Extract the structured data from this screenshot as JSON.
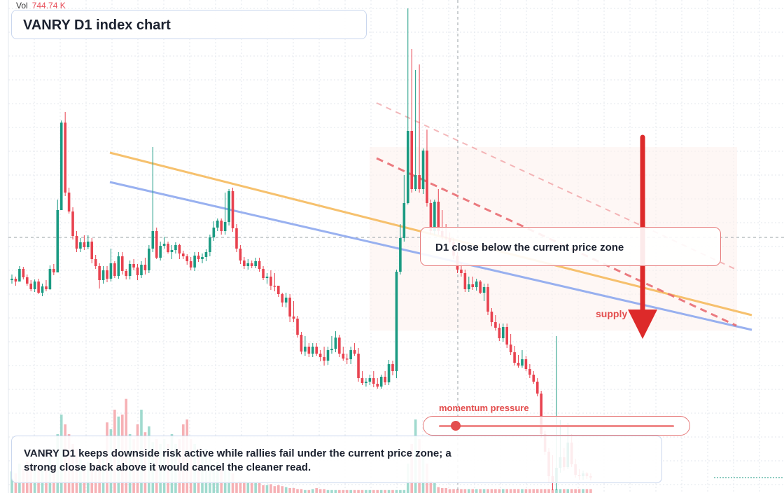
{
  "header": {
    "vol_label": "Vol",
    "vol_value": "744.74 K",
    "title": "VANRY D1 index chart"
  },
  "annotations": {
    "callout": "D1 close below the current price zone",
    "supply": "supply",
    "momentum_label": "momentum pressure",
    "momentum_value": 0.07,
    "summary": "VANRY D1 keeps downside risk active while rallies fail under the current price zone; a strong close back above it would cancel the cleaner read."
  },
  "colors": {
    "up": "#1a9a82",
    "down": "#e8424f",
    "vol_up": "#8fd3c6",
    "vol_down": "#f4a3a8",
    "trend_orange": "#f6bb5f",
    "trend_blue": "#8ea9ef",
    "resistance": "#e8656b",
    "accent": "#e34d4d"
  },
  "icons": {
    "signal_arrow": "down-arrow-icon"
  },
  "chart_data": {
    "type": "candlestick",
    "title": "VANRY D1 index chart",
    "grid": true,
    "ylim": [
      0,
      704
    ],
    "candles": [
      [
        400,
        398,
        405,
        392
      ],
      [
        398,
        402,
        408,
        395
      ],
      [
        402,
        384,
        388,
        380
      ],
      [
        384,
        396,
        399,
        381
      ],
      [
        396,
        405,
        408,
        392
      ],
      [
        405,
        413,
        416,
        400
      ],
      [
        413,
        402,
        417,
        399
      ],
      [
        402,
        418,
        420,
        398
      ],
      [
        418,
        409,
        423,
        405
      ],
      [
        409,
        413,
        416,
        400
      ],
      [
        413,
        384,
        414,
        379
      ],
      [
        384,
        389,
        393,
        377
      ],
      [
        389,
        300,
        308,
        285
      ],
      [
        300,
        175,
        185,
        172
      ],
      [
        175,
        275,
        280,
        160
      ],
      [
        275,
        302,
        305,
        268
      ],
      [
        302,
        337,
        342,
        296
      ],
      [
        337,
        355,
        360,
        330
      ],
      [
        355,
        346,
        360,
        340
      ],
      [
        346,
        353,
        357,
        336
      ],
      [
        353,
        345,
        356,
        336
      ],
      [
        345,
        370,
        376,
        340
      ],
      [
        370,
        380,
        384,
        364
      ],
      [
        380,
        400,
        412,
        376
      ],
      [
        400,
        386,
        405,
        380
      ],
      [
        386,
        398,
        403,
        380
      ],
      [
        398,
        376,
        402,
        355
      ],
      [
        376,
        394,
        397,
        373
      ],
      [
        394,
        366,
        398,
        360
      ],
      [
        366,
        387,
        392,
        360
      ],
      [
        387,
        394,
        399,
        384
      ],
      [
        394,
        377,
        399,
        372
      ],
      [
        377,
        382,
        386,
        370
      ],
      [
        382,
        393,
        400,
        377
      ],
      [
        393,
        378,
        397,
        373
      ],
      [
        378,
        386,
        392,
        368
      ],
      [
        386,
        355,
        390,
        350
      ],
      [
        355,
        330,
        360,
        210
      ],
      [
        330,
        368,
        370,
        325
      ],
      [
        368,
        351,
        372,
        345
      ],
      [
        351,
        348,
        355,
        338
      ],
      [
        348,
        360,
        362,
        345
      ],
      [
        360,
        357,
        370,
        350
      ],
      [
        357,
        350,
        362,
        346
      ],
      [
        350,
        362,
        370,
        348
      ],
      [
        362,
        366,
        370,
        358
      ],
      [
        366,
        373,
        378,
        363
      ],
      [
        373,
        382,
        386,
        367
      ],
      [
        382,
        365,
        387,
        360
      ],
      [
        365,
        370,
        374,
        360
      ],
      [
        370,
        367,
        376,
        362
      ],
      [
        367,
        360,
        373,
        356
      ],
      [
        360,
        339,
        366,
        335
      ],
      [
        339,
        325,
        344,
        316
      ],
      [
        325,
        315,
        330,
        312
      ],
      [
        315,
        330,
        335,
        312
      ],
      [
        330,
        317,
        335,
        275
      ],
      [
        317,
        273,
        322,
        270
      ],
      [
        273,
        326,
        331,
        268
      ],
      [
        326,
        355,
        360,
        320
      ],
      [
        355,
        372,
        377,
        350
      ],
      [
        372,
        380,
        384,
        367
      ],
      [
        380,
        376,
        385,
        370
      ],
      [
        376,
        380,
        383,
        372
      ],
      [
        380,
        373,
        383,
        368
      ],
      [
        373,
        384,
        388,
        368
      ],
      [
        384,
        397,
        400,
        380
      ],
      [
        397,
        395,
        405,
        390
      ],
      [
        395,
        408,
        414,
        386
      ],
      [
        408,
        408,
        416,
        390
      ],
      [
        408,
        420,
        424,
        412
      ],
      [
        420,
        432,
        438,
        418
      ],
      [
        432,
        425,
        439,
        418
      ],
      [
        425,
        452,
        460,
        420
      ],
      [
        452,
        455,
        460,
        430
      ],
      [
        455,
        478,
        482,
        451
      ],
      [
        478,
        502,
        506,
        474
      ],
      [
        502,
        495,
        508,
        480
      ],
      [
        495,
        505,
        510,
        490
      ],
      [
        505,
        495,
        510,
        490
      ],
      [
        495,
        505,
        508,
        490
      ],
      [
        505,
        510,
        516,
        500
      ],
      [
        510,
        515,
        522,
        495
      ],
      [
        515,
        500,
        521,
        495
      ],
      [
        500,
        498,
        505,
        480
      ],
      [
        498,
        482,
        503,
        473
      ],
      [
        482,
        505,
        510,
        478
      ],
      [
        505,
        512,
        515,
        495
      ],
      [
        512,
        513,
        520,
        505
      ],
      [
        513,
        500,
        520,
        495
      ],
      [
        500,
        505,
        508,
        490
      ],
      [
        505,
        540,
        545,
        497
      ],
      [
        540,
        547,
        550,
        530
      ],
      [
        547,
        545,
        552,
        540
      ],
      [
        545,
        540,
        550,
        535
      ],
      [
        540,
        548,
        553,
        530
      ],
      [
        548,
        552,
        555,
        540
      ],
      [
        552,
        538,
        555,
        535
      ],
      [
        538,
        546,
        550,
        530
      ],
      [
        546,
        520,
        550,
        514
      ],
      [
        520,
        530,
        536,
        515
      ],
      [
        530,
        388,
        540,
        385
      ],
      [
        388,
        340,
        392,
        320
      ],
      [
        340,
        290,
        345,
        250
      ],
      [
        290,
        187,
        292,
        12
      ],
      [
        187,
        270,
        275,
        70
      ],
      [
        270,
        250,
        273,
        100
      ],
      [
        250,
        270,
        275,
        92
      ],
      [
        270,
        215,
        277,
        212
      ],
      [
        215,
        290,
        295,
        185
      ],
      [
        290,
        330,
        335,
        285
      ],
      [
        330,
        288,
        335,
        285
      ],
      [
        288,
        330,
        335,
        270
      ],
      [
        330,
        338,
        342,
        300
      ],
      [
        338,
        340,
        343,
        320
      ],
      [
        340,
        346,
        349,
        332
      ],
      [
        346,
        365,
        370,
        340
      ],
      [
        365,
        385,
        390,
        360
      ],
      [
        385,
        390,
        395,
        375
      ],
      [
        390,
        413,
        417,
        385
      ],
      [
        413,
        406,
        417,
        395
      ],
      [
        406,
        410,
        414,
        395
      ],
      [
        410,
        402,
        415,
        398
      ],
      [
        402,
        418,
        420,
        400
      ],
      [
        418,
        410,
        430,
        405
      ],
      [
        410,
        445,
        450,
        405
      ],
      [
        445,
        460,
        466,
        440
      ],
      [
        460,
        468,
        472,
        450
      ],
      [
        468,
        483,
        487,
        462
      ],
      [
        483,
        467,
        488,
        462
      ],
      [
        467,
        492,
        497,
        462
      ],
      [
        492,
        503,
        507,
        477
      ],
      [
        503,
        518,
        522,
        494
      ],
      [
        518,
        522,
        525,
        507
      ],
      [
        522,
        513,
        525,
        500
      ],
      [
        513,
        527,
        530,
        508
      ],
      [
        527,
        535,
        540,
        520
      ],
      [
        535,
        545,
        548,
        530
      ],
      [
        545,
        562,
        566,
        540
      ],
      [
        562,
        620,
        625,
        558
      ],
      [
        620,
        645,
        650,
        615
      ],
      [
        645,
        680,
        690,
        640
      ],
      [
        680,
        688,
        700,
        650
      ],
      [
        688,
        668,
        700,
        480
      ],
      [
        668,
        653,
        675,
        600
      ],
      [
        653,
        667,
        672,
        640
      ],
      [
        667,
        632,
        670,
        604
      ],
      [
        632,
        663,
        667,
        620
      ],
      [
        663,
        678,
        682,
        655
      ],
      [
        678,
        680,
        685,
        670
      ],
      [
        680,
        676,
        685,
        672
      ],
      [
        676,
        680,
        684,
        674
      ],
      [
        680,
        682,
        686,
        676
      ]
    ],
    "volume": [
      0.22,
      0.2,
      0.3,
      0.25,
      0.32,
      0.28,
      0.3,
      0.26,
      0.25,
      0.24,
      0.4,
      0.3,
      0.6,
      0.8,
      0.7,
      0.6,
      0.5,
      0.45,
      0.35,
      0.3,
      0.32,
      0.3,
      0.28,
      0.35,
      0.36,
      0.72,
      0.65,
      0.85,
      0.78,
      0.8,
      0.96,
      0.6,
      0.55,
      0.7,
      0.85,
      0.62,
      0.68,
      0.52,
      0.55,
      0.5,
      0.55,
      0.5,
      0.6,
      0.5,
      0.55,
      0.7,
      0.75,
      0.55,
      0.5,
      0.45,
      0.4,
      0.45,
      0.35,
      0.3,
      0.32,
      0.28,
      0.25,
      0.22,
      0.2,
      0.1,
      0.12,
      0.12,
      0.1,
      0.11,
      0.1,
      0.1,
      0.08,
      0.08,
      0.09,
      0.07,
      0.08,
      0.07,
      0.06,
      0.05,
      0.05,
      0.04,
      0.04,
      0.03,
      0.03,
      0.04,
      0.05,
      0.04,
      0.04,
      0.03,
      0.03,
      0.03,
      0.03,
      0.03,
      0.03,
      0.03,
      0.03,
      0.03,
      0.03,
      0.03,
      0.03,
      0.03,
      0.03,
      0.03,
      0.03,
      0.03,
      0.03,
      0.03,
      0.03,
      0.03,
      0.3,
      0.5,
      0.75,
      0.55,
      0.4,
      0.3,
      0.12,
      0.1,
      0.06,
      0.05,
      0.05,
      0.04,
      0.04,
      0.04,
      0.04,
      0.04,
      0.04,
      0.04,
      0.04,
      0.04,
      0.04,
      0.04,
      0.04,
      0.04,
      0.04,
      0.04,
      0.04,
      0.04,
      0.04,
      0.04,
      0.04,
      0.04,
      0.04,
      0.04,
      0.04,
      0.04,
      0.04,
      0.04,
      0.04,
      0.04,
      0.04,
      0.04,
      0.04,
      0.04,
      0.04,
      0.04,
      0.04,
      0.04,
      0.04,
      0.04,
      0.04,
      0.04,
      0.04,
      0.04
    ],
    "trend_lines": [
      {
        "kind": "orange",
        "from": [
          157,
          218
        ],
        "to": [
          1074,
          450
        ]
      },
      {
        "kind": "blue",
        "from": [
          157,
          260
        ],
        "to": [
          1074,
          471
        ]
      },
      {
        "kind": "resistance-dashed",
        "from": [
          538,
          226
        ],
        "to": [
          1052,
          465
        ]
      },
      {
        "kind": "resistance-faint",
        "from": [
          538,
          147
        ],
        "to": [
          1052,
          385
        ]
      }
    ],
    "current_price_level": 339
  }
}
